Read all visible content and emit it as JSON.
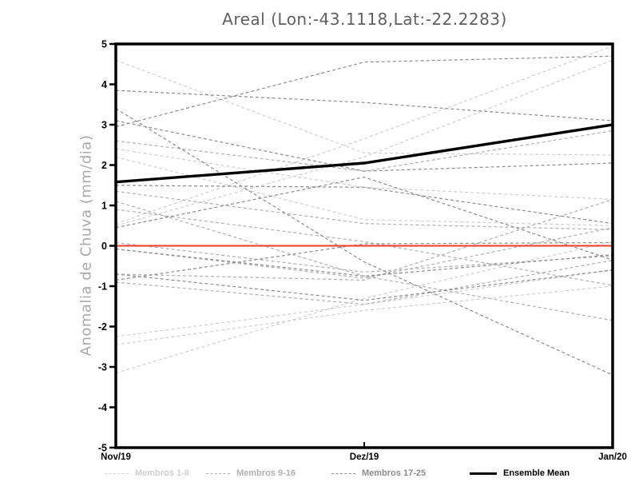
{
  "title": "Areal (Lon:-43.1118,Lat:-22.2283)",
  "chart_data": {
    "type": "line",
    "title": "Areal (Lon:-43.1118,Lat:-22.2283)",
    "ylabel": "Anomalia de Chuva (mm/dia)",
    "xlabel": "",
    "x_categories": [
      "Nov/19",
      "Dez/19",
      "Jan/20"
    ],
    "ylim": [
      -5,
      5
    ],
    "yticks": [
      5,
      4,
      3,
      2,
      1,
      0,
      -1,
      -2,
      -3,
      -4,
      -5
    ],
    "grid": false,
    "legend_position": "bottom",
    "zero_line": {
      "value": 0,
      "color": "#ef3b2c"
    },
    "groups": [
      {
        "name": "Membros 1-8",
        "color": "#cfcfcf",
        "style": "dashed",
        "members": [
          [
            4.6,
            2.3,
            2.25
          ],
          [
            2.4,
            1.45,
            1.15
          ],
          [
            2.2,
            0.65,
            0.5
          ],
          [
            0.55,
            2.65,
            4.95
          ],
          [
            0.5,
            2.2,
            4.6
          ],
          [
            -2.25,
            -1.45,
            -0.6
          ],
          [
            -2.45,
            -1.6,
            -1.0
          ],
          [
            -3.15,
            -1.3,
            0.1
          ]
        ]
      },
      {
        "name": "Membros 9-16",
        "color": "#b0b0b0",
        "style": "dashed",
        "members": [
          [
            2.6,
            1.85,
            2.85
          ],
          [
            1.35,
            0.55,
            0.4
          ],
          [
            1.1,
            -0.75,
            -1.85
          ],
          [
            0.08,
            -0.65,
            -0.25
          ],
          [
            -0.08,
            -0.8,
            0.45
          ],
          [
            -0.7,
            -0.85,
            1.15
          ],
          [
            -0.9,
            -1.45,
            -0.36
          ],
          [
            0.9,
            0.1,
            -0.98
          ]
        ]
      },
      {
        "name": "Membros 17-25",
        "color": "#8c8c8c",
        "style": "dashed",
        "members": [
          [
            2.95,
            4.55,
            4.7
          ],
          [
            3.85,
            3.55,
            3.1
          ],
          [
            3.4,
            -0.4,
            -3.2
          ],
          [
            3.1,
            1.85,
            2.05
          ],
          [
            1.5,
            1.45,
            0.55
          ],
          [
            0.45,
            1.7,
            -0.35
          ],
          [
            -0.08,
            -0.75,
            -0.22
          ],
          [
            -0.7,
            -1.35,
            -0.6
          ],
          [
            -0.85,
            0.05,
            0.08
          ]
        ]
      }
    ],
    "mean": {
      "name": "Ensemble Mean",
      "color": "#000000",
      "values": [
        1.58,
        2.05,
        3.0
      ]
    }
  }
}
